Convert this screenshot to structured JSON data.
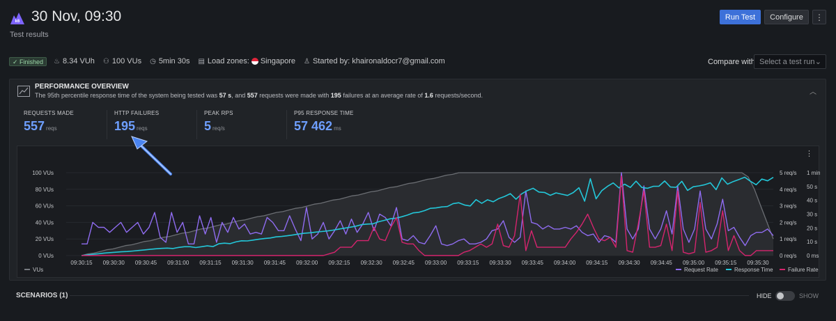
{
  "header": {
    "title": "30 Nov, 09:30",
    "subtitle": "Test results",
    "run_label": "Run Test",
    "configure_label": "Configure",
    "more_label": "⋮"
  },
  "meta": {
    "status": "✓ Finished",
    "vuh": "8.34 VUh",
    "vus": "100 VUs",
    "duration": "5min 30s",
    "zones_label": "Load zones:",
    "zone": "Singapore",
    "started_by": "Started by: khaironaldocr7@gmail.com"
  },
  "compare": {
    "label": "Compare with",
    "placeholder": "Select a test run"
  },
  "overview": {
    "title": "PERFORMANCE OVERVIEW",
    "desc_1": "The 95th percentile response time of the system being tested was ",
    "desc_b1": "57 s",
    "desc_2": ", and ",
    "desc_b2": "557",
    "desc_3": " requests were made with ",
    "desc_b3": "195",
    "desc_4": " failures at an average rate of ",
    "desc_b4": "1.6",
    "desc_5": " requests/second.",
    "stats": [
      {
        "label": "REQUESTS MADE",
        "value": "557",
        "unit": "reqs"
      },
      {
        "label": "HTTP FAILURES",
        "value": "195",
        "unit": "reqs"
      },
      {
        "label": "PEAK RPS",
        "value": "5",
        "unit": "req/s"
      },
      {
        "label": "P95 RESPONSE TIME",
        "value": "57 462",
        "unit": "ms"
      }
    ]
  },
  "chart_data": {
    "type": "line",
    "x_ticks": [
      "09:30:15",
      "09:30:30",
      "09:30:45",
      "09:31:00",
      "09:31:15",
      "09:31:30",
      "09:31:45",
      "09:32:00",
      "09:32:15",
      "09:32:30",
      "09:32:45",
      "09:33:00",
      "09:33:15",
      "09:33:30",
      "09:33:45",
      "09:34:00",
      "09:34:15",
      "09:34:30",
      "09:34:45",
      "09:35:00",
      "09:35:15",
      "09:35:30"
    ],
    "y_left_ticks": [
      "0 VUs",
      "20 VUs",
      "40 VUs",
      "60 VUs",
      "80 VUs",
      "100 VUs"
    ],
    "y_req_ticks": [
      "0 req/s",
      "1 req/s",
      "2 req/s",
      "3 req/s",
      "4 req/s",
      "5 req/s"
    ],
    "y_time_ticks": [
      "0 ms",
      "10 s",
      "20 s",
      "30 s",
      "40 s",
      "50 s",
      "1 min"
    ],
    "ylim_vus": [
      0,
      100
    ],
    "ylim_req": [
      0,
      5
    ],
    "ylim_time_s": [
      0,
      60
    ],
    "x_start": "09:30:15",
    "x_step_s": 3,
    "legend": [
      {
        "name": "VUs",
        "color": "#777a80"
      },
      {
        "name": "Request Rate",
        "color": "#8f6cf0"
      },
      {
        "name": "Response Time",
        "color": "#23c7d9"
      },
      {
        "name": "Failure Rate",
        "color": "#d6246e"
      }
    ],
    "series": [
      {
        "name": "VUs",
        "values": [
          0,
          2,
          3,
          5,
          7,
          8,
          10,
          12,
          13,
          15,
          17,
          18,
          20,
          22,
          23,
          25,
          27,
          28,
          30,
          32,
          33,
          35,
          37,
          38,
          40,
          42,
          43,
          45,
          47,
          48,
          50,
          52,
          53,
          55,
          57,
          58,
          60,
          62,
          63,
          65,
          67,
          68,
          70,
          72,
          73,
          75,
          77,
          78,
          80,
          82,
          83,
          85,
          87,
          88,
          90,
          92,
          93,
          95,
          97,
          98,
          100,
          100,
          100,
          100,
          100,
          100,
          100,
          100,
          100,
          100,
          100,
          100,
          100,
          100,
          100,
          100,
          100,
          100,
          100,
          100,
          100,
          100,
          100,
          100,
          100,
          100,
          100,
          100,
          100,
          100,
          100,
          100,
          100,
          100,
          100,
          100,
          100,
          100,
          100,
          100,
          100,
          100,
          100,
          100,
          100,
          100,
          95,
          80,
          60,
          40,
          20
        ]
      },
      {
        "name": "Request Rate",
        "values": [
          0.7,
          0.7,
          2,
          1.7,
          1.7,
          1.4,
          1.7,
          2,
          1.4,
          1.7,
          2,
          1.3,
          1.7,
          2.6,
          1.1,
          0.8,
          2.6,
          1.4,
          2,
          0.7,
          0.7,
          2.4,
          1.3,
          2.3,
          0.8,
          2,
          1.4,
          2.3,
          1.6,
          1.9,
          1.3,
          1.4,
          1.3,
          2.3,
          2,
          1.5,
          1.5,
          2.4,
          1.6,
          0.9,
          2.9,
          1,
          1.3,
          2,
          1,
          1.5,
          2.1,
          1.3,
          2.2,
          1.4,
          1.9,
          2.6,
          1.5,
          2.5,
          2.3,
          1.8,
          2.9,
          1,
          0.9,
          1.2,
          0.8,
          0.7,
          1.2,
          1.8,
          0.7,
          0.6,
          0.7,
          0.9,
          1,
          0.7,
          0.7,
          0.8,
          1,
          1.5,
          1.6,
          2.1,
          1.1,
          0.8,
          1.1,
          3.9,
          2,
          1.9,
          1.6,
          1.8,
          1.6,
          1.6,
          1.7,
          1.6,
          1.8,
          1.4,
          1.2,
          1.3,
          0.8,
          1.2,
          1.1,
          0.8,
          5,
          1.6,
          1,
          1.6,
          4.2,
          1.6,
          1,
          1.6,
          2.7,
          1.3,
          4.2,
          1.6,
          0.8,
          1.6,
          3.9,
          1.6,
          1,
          1.9,
          3.4,
          1.5,
          1.7,
          1.1,
          0.6,
          1.2,
          1.4,
          1.4,
          1.6,
          1.2
        ]
      },
      {
        "name": "Response Time",
        "values": [
          0,
          0.5,
          0.9,
          1.3,
          1.8,
          2.1,
          2.4,
          2.7,
          2.9,
          3.3,
          3.7,
          4.1,
          4.5,
          4.9,
          5.2,
          5.4,
          5.1,
          5.9,
          6.4,
          6.4,
          5.8,
          6.4,
          7,
          6.5,
          8.5,
          9,
          8.6,
          9.9,
          10.7,
          10.6,
          11.2,
          11.8,
          12.3,
          12.7,
          13.5,
          13.8,
          14.3,
          14.9,
          15.6,
          16.2,
          16.5,
          17,
          17.4,
          17.8,
          18.4,
          19.1,
          19.8,
          20.5,
          21.3,
          22.4,
          22.8,
          23,
          24.5,
          25.5,
          26.6,
          27.1,
          28.1,
          29.3,
          30.9,
          31.3,
          32.5,
          34.2,
          34.5,
          35.2,
          35.5,
          37.6,
          38.2,
          36.6,
          35.9,
          40.5,
          37.8,
          40.4,
          38.9,
          41.3,
          42.8,
          44.8,
          40.8,
          44.7,
          47.1,
          48.7,
          46,
          45.7,
          43.6,
          45.4,
          44.4,
          43.5,
          45.6,
          49.1,
          39.4,
          55.6,
          41.1,
          47,
          50.1,
          52.6,
          49,
          51.7,
          49.3,
          53.9,
          49.3,
          48.7,
          50.1,
          50.2,
          54,
          49.6,
          49.4,
          53.8,
          47.2,
          49.8,
          50.4,
          51.3,
          52.7,
          47.7,
          56.2,
          51.7,
          53.6,
          55.1,
          56.7,
          53.8,
          51.3,
          55.4,
          54.1,
          56.6
        ]
      },
      {
        "name": "Failure Rate",
        "values": [
          0,
          0,
          0,
          0,
          0,
          0,
          0,
          0,
          0,
          0,
          0,
          0,
          0,
          0,
          0,
          0,
          0,
          0,
          0,
          0,
          0,
          0,
          0,
          0,
          0,
          0,
          0,
          0,
          0,
          0,
          0,
          0,
          0,
          0,
          0,
          0,
          0,
          0,
          0,
          0,
          0,
          0,
          0,
          0,
          0.1,
          0.2,
          0.5,
          0.5,
          0.5,
          0.9,
          0.9,
          0.9,
          1.7,
          1,
          0.9,
          1.7,
          2.3,
          0.8,
          0.7,
          0.7,
          0.3,
          0,
          0,
          0,
          0,
          0,
          0,
          0,
          0.2,
          0.3,
          0.5,
          0.7,
          0.5,
          0.7,
          1.9,
          0.6,
          0.5,
          1.2,
          3.7,
          0.3,
          1.5,
          0.5,
          0.5,
          0.5,
          0.5,
          0.5,
          0.5,
          1,
          1.4,
          1.9,
          2.5,
          1.7,
          1,
          0.9,
          1.1,
          0.5,
          4.8,
          0.3,
          0.2,
          1.9,
          3.9,
          0.5,
          0.5,
          0.6,
          1.9,
          0.3,
          3.9,
          0.2,
          0.1,
          0.2,
          3.2,
          0.2,
          0.3,
          0.5,
          2.7,
          0.3,
          1.2,
          0.3,
          0,
          0,
          0.3,
          0.3,
          0.3,
          0.3
        ]
      }
    ]
  },
  "scenarios": {
    "label": "SCENARIOS (1)",
    "hide": "HIDE",
    "show": "SHOW"
  }
}
